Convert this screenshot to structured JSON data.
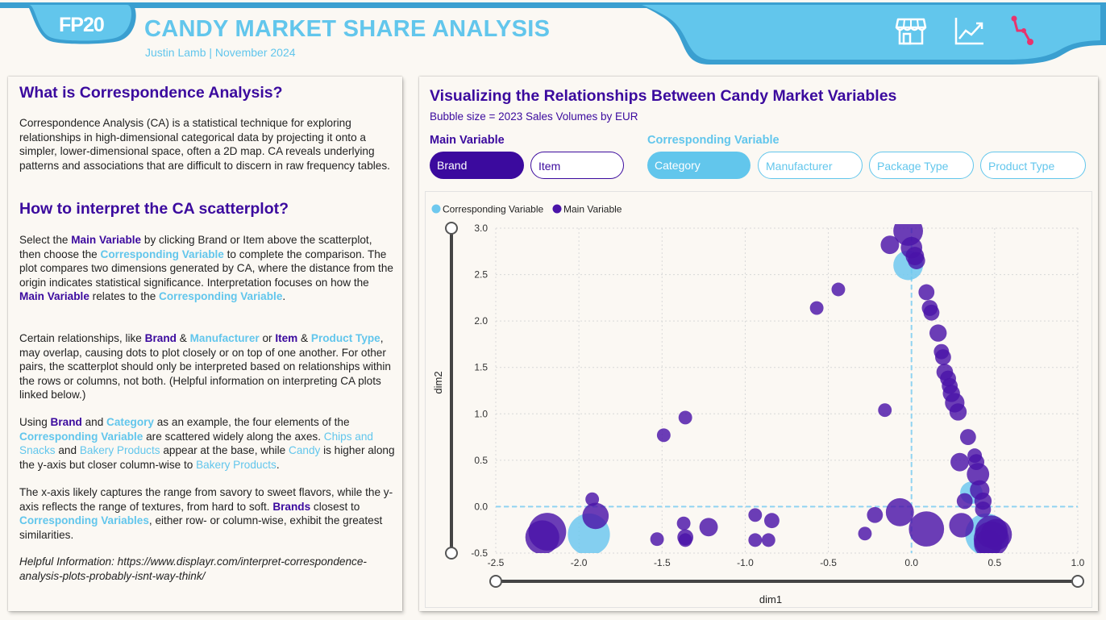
{
  "header": {
    "logo": "FP20",
    "title": "CANDY MARKET SHARE ANALYSIS",
    "subtitle": "Justin Lamb | November 2024",
    "nav_icons": [
      "store-icon",
      "line-chart-icon",
      "scatter-link-icon"
    ],
    "colors": {
      "band": "#62c6ec",
      "band_dark": "#3a9fd0",
      "accent": "#e8336d"
    }
  },
  "left_panel": {
    "heading1": "What is Correspondence Analysis?",
    "intro": "Correspondence Analysis (CA) is a statistical technique for exploring relationships in high-dimensional categorical data by projecting it onto a simpler, lower-dimensional space, often a 2D map. CA reveals underlying patterns and associations that are difficult to discern in raw frequency tables.",
    "heading2": "How to interpret the CA scatterplot?",
    "p1": {
      "t1": "Select the ",
      "k1": "Main Variable",
      "t2": " by clicking Brand or Item above the scatterplot, then choose the ",
      "k2": "Corresponding Variable",
      "t3": " to complete the comparison. The plot compares two dimensions generated by CA, where the distance from the origin indicates statistical significance. Interpretation focuses on how the ",
      "k3": "Main Variable",
      "t4": " relates to the ",
      "k4": "Corresponding Variable",
      "t5": "."
    },
    "p2": {
      "t1": "Certain relationships, like ",
      "k1": "Brand",
      "t2": " & ",
      "k2": "Manufacturer",
      "t3": " or ",
      "k3": "Item",
      "t4": " & ",
      "k4": "Product Type",
      "t5": ", may overlap, causing dots to plot closely or on top of one another. For other pairs, the scatterplot should only be interpreted based on relationships within the rows or columns, not both. (Helpful information on interpreting CA plots linked below.)"
    },
    "p3": {
      "t1": "Using ",
      "k1": "Brand",
      "t2": " and ",
      "k2": "Category",
      "t3": " as an example, the four elements of the ",
      "k3": "Corresponding Variable",
      "t4": " are scattered widely along the axes. ",
      "l1": "Chips and Snacks",
      "t5": " and ",
      "l2": "Bakery Products",
      "t6": " appear at the base, while ",
      "l3": "Candy",
      "t7": " is higher along the y-axis but closer column-wise to ",
      "l4": "Bakery Products",
      "t8": "."
    },
    "p4": {
      "t1": "The x-axis likely captures the range from savory to sweet flavors, while the y-axis reflects the range of textures, from hard to soft. ",
      "k1": "Brands",
      "t2": " closest to ",
      "k2": "Corresponding Variables",
      "t3": ", either row- or column-wise, exhibit the greatest similarities."
    },
    "helpful": "Helpful Information: https://www.displayr.com/interpret-correspondence-analysis-plots-probably-isnt-way-think/"
  },
  "right_panel": {
    "title": "Visualizing the Relationships Between Candy Market Variables",
    "subtitle": "Bubble size = 2023 Sales Volumes by EUR",
    "main_label": "Main Variable",
    "corr_label": "Corresponding Variable",
    "main_buttons": [
      "Brand",
      "Item"
    ],
    "corr_buttons": [
      "Category",
      "Manufacturer",
      "Package Type",
      "Product Type"
    ],
    "main_selected": "Brand",
    "corr_selected": "Category"
  },
  "chart_data": {
    "type": "scatter",
    "xlabel": "dim1",
    "ylabel": "dim2",
    "xlim": [
      -2.5,
      1.0
    ],
    "ylim": [
      -0.5,
      3.0
    ],
    "x_ticks": [
      "-2.5",
      "-2.0",
      "-1.5",
      "-1.0",
      "-0.5",
      "0.0",
      "0.5",
      "1.0"
    ],
    "y_ticks": [
      "-0.5",
      "0.0",
      "0.5",
      "1.0",
      "1.5",
      "2.0",
      "2.5",
      "3.0"
    ],
    "grid": true,
    "legend_position": "top-left",
    "reference_lines": {
      "x": 0.0,
      "y": 0.0
    },
    "series": [
      {
        "name": "Corresponding Variable",
        "color": "#6ec8ee",
        "points": [
          {
            "x": -1.94,
            "y": -0.3,
            "size": 9
          },
          {
            "x": -0.02,
            "y": 2.6,
            "size": 4
          },
          {
            "x": 0.36,
            "y": 0.15,
            "size": 2
          },
          {
            "x": 0.45,
            "y": -0.3,
            "size": 9
          }
        ]
      },
      {
        "name": "Main Variable",
        "color": "#4a14a8",
        "points": [
          {
            "x": -0.02,
            "y": 2.97,
            "size": 4
          },
          {
            "x": -0.13,
            "y": 2.82,
            "size": 1.2
          },
          {
            "x": 0.0,
            "y": 2.79,
            "size": 1.8
          },
          {
            "x": 0.02,
            "y": 2.7,
            "size": 1.2
          },
          {
            "x": 0.03,
            "y": 2.65,
            "size": 1
          },
          {
            "x": -0.44,
            "y": 2.34,
            "size": 0.5
          },
          {
            "x": 0.09,
            "y": 2.31,
            "size": 0.8
          },
          {
            "x": -0.57,
            "y": 2.14,
            "size": 0.5
          },
          {
            "x": 0.11,
            "y": 2.14,
            "size": 0.8
          },
          {
            "x": 0.12,
            "y": 2.09,
            "size": 0.8
          },
          {
            "x": 0.16,
            "y": 1.87,
            "size": 1
          },
          {
            "x": 0.18,
            "y": 1.67,
            "size": 0.7
          },
          {
            "x": 0.19,
            "y": 1.61,
            "size": 0.8
          },
          {
            "x": 0.2,
            "y": 1.45,
            "size": 0.9
          },
          {
            "x": 0.22,
            "y": 1.38,
            "size": 0.8
          },
          {
            "x": 0.23,
            "y": 1.3,
            "size": 0.8
          },
          {
            "x": 0.24,
            "y": 1.22,
            "size": 1
          },
          {
            "x": 0.26,
            "y": 1.12,
            "size": 1.4
          },
          {
            "x": -0.16,
            "y": 1.04,
            "size": 0.5
          },
          {
            "x": 0.28,
            "y": 1.02,
            "size": 1
          },
          {
            "x": -1.36,
            "y": 0.96,
            "size": 0.5
          },
          {
            "x": 0.34,
            "y": 0.75,
            "size": 0.8
          },
          {
            "x": -1.49,
            "y": 0.77,
            "size": 0.5
          },
          {
            "x": 0.38,
            "y": 0.55,
            "size": 0.6
          },
          {
            "x": 0.29,
            "y": 0.48,
            "size": 1.2
          },
          {
            "x": 0.39,
            "y": 0.48,
            "size": 0.8
          },
          {
            "x": 0.4,
            "y": 0.35,
            "size": 2
          },
          {
            "x": 0.41,
            "y": 0.18,
            "size": 1.4
          },
          {
            "x": -1.92,
            "y": 0.08,
            "size": 0.5
          },
          {
            "x": 0.43,
            "y": 0.06,
            "size": 1
          },
          {
            "x": 0.32,
            "y": 0.06,
            "size": 0.8
          },
          {
            "x": 0.43,
            "y": -0.03,
            "size": 0.8
          },
          {
            "x": -1.9,
            "y": -0.1,
            "size": 3
          },
          {
            "x": -0.07,
            "y": -0.06,
            "size": 3.5
          },
          {
            "x": -0.22,
            "y": -0.09,
            "size": 0.8
          },
          {
            "x": -0.94,
            "y": -0.09,
            "size": 0.5
          },
          {
            "x": -0.84,
            "y": -0.15,
            "size": 0.7
          },
          {
            "x": -1.37,
            "y": -0.18,
            "size": 0.5
          },
          {
            "x": -1.22,
            "y": -0.22,
            "size": 1.2
          },
          {
            "x": -2.19,
            "y": -0.27,
            "size": 7
          },
          {
            "x": -2.22,
            "y": -0.33,
            "size": 5.5
          },
          {
            "x": 0.09,
            "y": -0.24,
            "size": 6
          },
          {
            "x": 0.3,
            "y": -0.2,
            "size": 2.5
          },
          {
            "x": -0.28,
            "y": -0.29,
            "size": 0.5
          },
          {
            "x": -1.36,
            "y": -0.33,
            "size": 0.8
          },
          {
            "x": -1.53,
            "y": -0.35,
            "size": 0.5
          },
          {
            "x": -1.36,
            "y": -0.36,
            "size": 0.5
          },
          {
            "x": -0.94,
            "y": -0.36,
            "size": 0.5
          },
          {
            "x": -0.86,
            "y": -0.36,
            "size": 0.5
          },
          {
            "x": 0.48,
            "y": -0.27,
            "size": 5
          },
          {
            "x": 0.51,
            "y": -0.3,
            "size": 4.5
          },
          {
            "x": 0.48,
            "y": -0.35,
            "size": 6
          },
          {
            "x": 0.46,
            "y": -0.4,
            "size": 3.5
          }
        ]
      }
    ]
  }
}
